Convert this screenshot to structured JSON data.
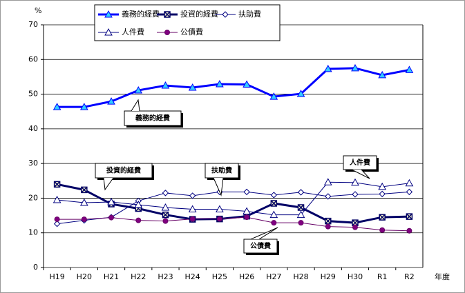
{
  "chart_data": {
    "type": "line",
    "y_unit": "%",
    "x_label": "年度",
    "categories": [
      "H19",
      "H20",
      "H21",
      "H22",
      "H23",
      "H24",
      "H25",
      "H26",
      "H27",
      "H28",
      "H29",
      "H30",
      "R1",
      "R2"
    ],
    "ylim": [
      0,
      70
    ],
    "yticks": [
      0,
      10,
      20,
      30,
      40,
      50,
      60,
      70
    ],
    "grid": true,
    "series": [
      {
        "name": "義務的経費",
        "color": "#0000ff",
        "marker": "triangle",
        "marker_color": "#33ccff",
        "width": 3,
        "values": [
          46.3,
          46.3,
          47.9,
          51.1,
          52.5,
          51.9,
          52.9,
          52.8,
          49.3,
          50.1,
          57.3,
          57.5,
          55.5,
          57.0
        ]
      },
      {
        "name": "投資的経費",
        "color": "#000066",
        "marker": "square-x",
        "marker_color": "#ffffcc",
        "width": 3,
        "values": [
          24.0,
          22.4,
          18.3,
          17.0,
          15.2,
          13.9,
          14.0,
          14.8,
          18.5,
          17.3,
          13.4,
          12.9,
          14.5,
          14.7
        ]
      },
      {
        "name": "扶助費",
        "color": "#000080",
        "marker": "diamond",
        "marker_color": "#ffffff",
        "width": 1,
        "values": [
          12.6,
          13.6,
          14.5,
          19.2,
          21.5,
          20.7,
          21.8,
          21.8,
          20.9,
          21.7,
          20.5,
          21.1,
          21.2,
          21.8
        ]
      },
      {
        "name": "人件費",
        "color": "#000080",
        "marker": "triangle",
        "marker_color": "#ffffff",
        "width": 1,
        "values": [
          19.5,
          18.7,
          18.9,
          18.1,
          17.3,
          16.8,
          16.8,
          16.2,
          15.2,
          15.2,
          24.6,
          24.5,
          23.3,
          24.3
        ]
      },
      {
        "name": "公債費",
        "color": "#660066",
        "marker": "circle",
        "marker_color": "#800080",
        "width": 1,
        "values": [
          13.9,
          13.9,
          14.4,
          13.6,
          13.4,
          14.0,
          14.0,
          14.5,
          12.9,
          12.9,
          11.8,
          11.6,
          10.8,
          10.6
        ]
      }
    ],
    "annotations": [
      "義務的経費",
      "投資的経費",
      "扶助費",
      "人件費",
      "公債費"
    ]
  }
}
